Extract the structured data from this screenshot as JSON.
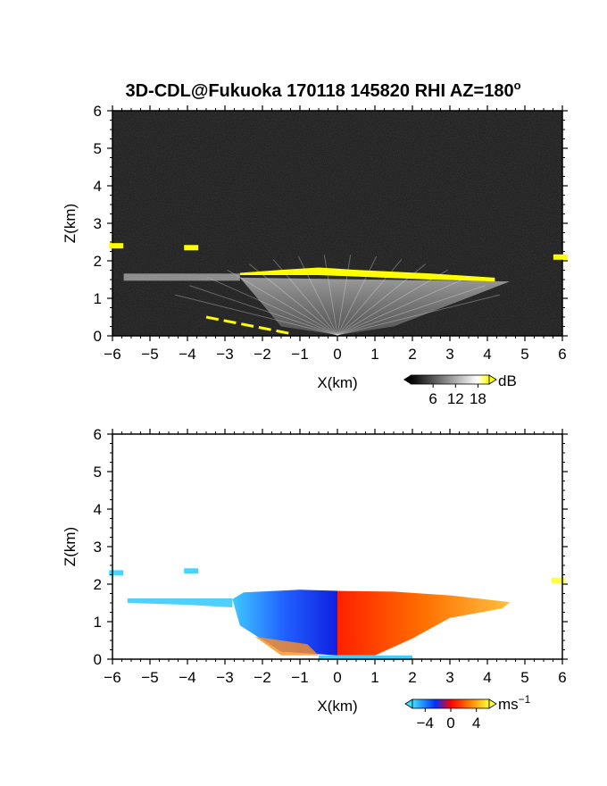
{
  "chart_data": [
    {
      "type": "heatmap",
      "title": "3D-CDL@Fukuoka 170118 145820 RHI AZ=180",
      "title_degree": "o",
      "xlabel": "X(km)",
      "ylabel": "Z(km)",
      "xlim": [
        -6,
        6
      ],
      "ylim": [
        0,
        6
      ],
      "x_ticks": [
        "−6",
        "−5",
        "−4",
        "−3",
        "−2",
        "−1",
        "0",
        "1",
        "2",
        "3",
        "4",
        "5",
        "6"
      ],
      "y_ticks": [
        "0",
        "1",
        "2",
        "3",
        "4",
        "5",
        "6"
      ],
      "background": "#1a1a1a",
      "colorbar": {
        "unit": "dB",
        "ticks": [
          "6",
          "12",
          "18"
        ],
        "range": [
          0,
          21
        ],
        "colors": [
          "#000000",
          "#ffffff",
          "#ffff00"
        ]
      },
      "features": [
        {
          "name": "boundary-layer-top-strong",
          "x": [
            -2.6,
            4.2
          ],
          "z_top": [
            1.75,
            1.5
          ],
          "color": "#ffff00"
        },
        {
          "name": "layer-left-weak",
          "x": [
            -5.7,
            -2.6
          ],
          "z": 1.6,
          "color": "#bbbbbb"
        },
        {
          "name": "ground-clutter",
          "x": [
            -3.5,
            -1.2
          ],
          "z": [
            0.5,
            0.05
          ],
          "color": "#ffff00"
        },
        {
          "name": "patch-1",
          "x": -3.9,
          "z": 2.35,
          "color": "#ffff00"
        },
        {
          "name": "patch-2",
          "x": -5.9,
          "z": 2.4,
          "color": "#ffff00"
        },
        {
          "name": "patch-3",
          "x": 5.95,
          "z": 2.1,
          "color": "#ffff00"
        }
      ]
    },
    {
      "type": "heatmap",
      "xlabel": "X(km)",
      "ylabel": "Z(km)",
      "xlim": [
        -6,
        6
      ],
      "ylim": [
        0,
        6
      ],
      "x_ticks": [
        "−6",
        "−5",
        "−4",
        "−3",
        "−2",
        "−1",
        "0",
        "1",
        "2",
        "3",
        "4",
        "5",
        "6"
      ],
      "y_ticks": [
        "0",
        "1",
        "2",
        "3",
        "4",
        "5",
        "6"
      ],
      "background": "#ffffff",
      "colorbar": {
        "unit": "ms",
        "unit_sup": "−1",
        "ticks": [
          "−4",
          "0",
          "4"
        ],
        "range": [
          -6,
          6
        ],
        "colors": [
          "#40e0ff",
          "#0030ff",
          "#ff0000",
          "#ff8000",
          "#ffff40"
        ]
      },
      "features": [
        {
          "name": "negative-velocity-region",
          "x": [
            -2.8,
            0
          ],
          "z": [
            0.1,
            1.85
          ],
          "value": -3
        },
        {
          "name": "positive-velocity-region",
          "x": [
            0,
            4.6
          ],
          "z": [
            0.1,
            1.8
          ],
          "value": 3
        },
        {
          "name": "cyan-layer-left",
          "x": [
            -5.6,
            -2.8
          ],
          "z": 1.55,
          "value": -5
        },
        {
          "name": "patch-1",
          "x": -3.9,
          "z": 2.35,
          "value": -5
        },
        {
          "name": "patch-2",
          "x": -5.9,
          "z": 2.3,
          "value": -5
        },
        {
          "name": "patch-3",
          "x": 5.9,
          "z": 2.1,
          "value": 5
        }
      ]
    }
  ]
}
